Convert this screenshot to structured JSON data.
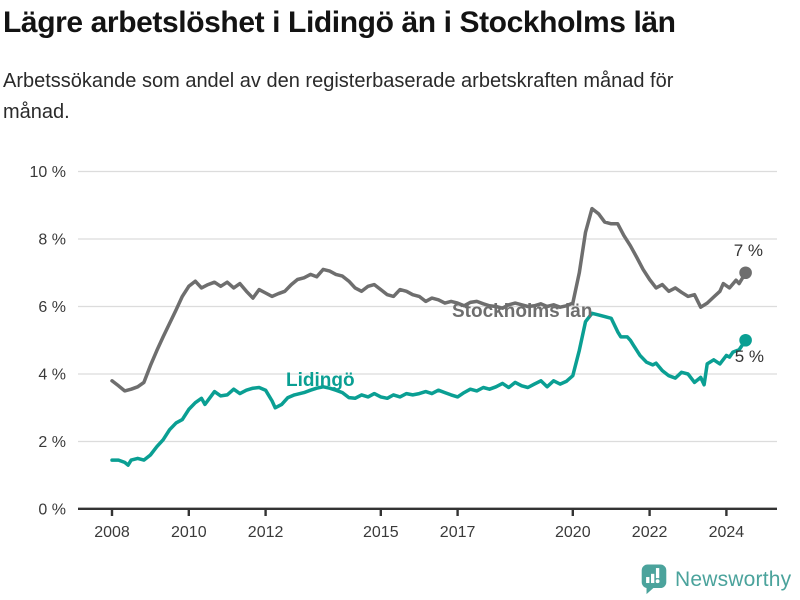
{
  "header": {
    "title": "Lägre arbetslöshet i Lidingö än i Stockholms län",
    "subtitle": "Arbetssökande som andel av den registerbaserade arbetskraften månad för månad."
  },
  "chart_data": {
    "type": "line",
    "title": "Lägre arbetslöshet i Lidingö än i Stockholms län",
    "xlabel": "",
    "ylabel": "",
    "ylim": [
      0,
      10
    ],
    "xlim": [
      2007.1,
      2025.3
    ],
    "grid": "horizontal",
    "legend": "inline-labels",
    "colors": {
      "grid": "#dcdcdc",
      "axis": "#333333",
      "tick_label": "#3a3a3a",
      "end_label": "#333333"
    },
    "y_ticks": [
      {
        "value": 10,
        "label": "10 %"
      },
      {
        "value": 8,
        "label": "8 %"
      },
      {
        "value": 6,
        "label": "6 %"
      },
      {
        "value": 4,
        "label": "4 %"
      },
      {
        "value": 2,
        "label": "2 %"
      },
      {
        "value": 0,
        "label": "0 %"
      }
    ],
    "x_ticks": [
      {
        "value": 2008,
        "label": "2008"
      },
      {
        "value": 2010,
        "label": "2010"
      },
      {
        "value": 2012,
        "label": "2012"
      },
      {
        "value": 2015,
        "label": "2015"
      },
      {
        "value": 2017,
        "label": "2017"
      },
      {
        "value": 2020,
        "label": "2020"
      },
      {
        "value": 2022,
        "label": "2022"
      },
      {
        "value": 2024,
        "label": "2024"
      }
    ],
    "series": [
      {
        "name": "Stockholms län",
        "color": "#6e6e6e",
        "end_label": "7 %",
        "points": [
          [
            2008.0,
            3.8
          ],
          [
            2008.17,
            3.65
          ],
          [
            2008.33,
            3.5
          ],
          [
            2008.5,
            3.55
          ],
          [
            2008.67,
            3.62
          ],
          [
            2008.83,
            3.75
          ],
          [
            2009.0,
            4.25
          ],
          [
            2009.17,
            4.7
          ],
          [
            2009.33,
            5.1
          ],
          [
            2009.5,
            5.5
          ],
          [
            2009.67,
            5.9
          ],
          [
            2009.83,
            6.3
          ],
          [
            2010.0,
            6.6
          ],
          [
            2010.17,
            6.75
          ],
          [
            2010.33,
            6.55
          ],
          [
            2010.5,
            6.65
          ],
          [
            2010.67,
            6.72
          ],
          [
            2010.83,
            6.6
          ],
          [
            2011.0,
            6.72
          ],
          [
            2011.17,
            6.55
          ],
          [
            2011.33,
            6.68
          ],
          [
            2011.5,
            6.45
          ],
          [
            2011.67,
            6.25
          ],
          [
            2011.83,
            6.5
          ],
          [
            2012.0,
            6.4
          ],
          [
            2012.17,
            6.3
          ],
          [
            2012.33,
            6.38
          ],
          [
            2012.5,
            6.45
          ],
          [
            2012.67,
            6.65
          ],
          [
            2012.83,
            6.8
          ],
          [
            2013.0,
            6.85
          ],
          [
            2013.17,
            6.95
          ],
          [
            2013.33,
            6.88
          ],
          [
            2013.5,
            7.1
          ],
          [
            2013.67,
            7.05
          ],
          [
            2013.83,
            6.95
          ],
          [
            2014.0,
            6.9
          ],
          [
            2014.17,
            6.75
          ],
          [
            2014.33,
            6.55
          ],
          [
            2014.5,
            6.45
          ],
          [
            2014.67,
            6.6
          ],
          [
            2014.83,
            6.65
          ],
          [
            2015.0,
            6.5
          ],
          [
            2015.17,
            6.35
          ],
          [
            2015.33,
            6.3
          ],
          [
            2015.5,
            6.5
          ],
          [
            2015.67,
            6.45
          ],
          [
            2015.83,
            6.35
          ],
          [
            2016.0,
            6.3
          ],
          [
            2016.17,
            6.15
          ],
          [
            2016.33,
            6.25
          ],
          [
            2016.5,
            6.2
          ],
          [
            2016.67,
            6.1
          ],
          [
            2016.83,
            6.15
          ],
          [
            2017.0,
            6.1
          ],
          [
            2017.17,
            6.02
          ],
          [
            2017.33,
            6.12
          ],
          [
            2017.5,
            6.15
          ],
          [
            2017.67,
            6.08
          ],
          [
            2017.83,
            6.02
          ],
          [
            2018.0,
            6.0
          ],
          [
            2018.17,
            5.95
          ],
          [
            2018.33,
            6.05
          ],
          [
            2018.5,
            6.1
          ],
          [
            2018.67,
            6.05
          ],
          [
            2018.83,
            6.0
          ],
          [
            2019.0,
            6.02
          ],
          [
            2019.17,
            6.08
          ],
          [
            2019.33,
            6.0
          ],
          [
            2019.5,
            6.05
          ],
          [
            2019.67,
            5.98
          ],
          [
            2019.83,
            6.02
          ],
          [
            2020.0,
            6.1
          ],
          [
            2020.17,
            7.0
          ],
          [
            2020.33,
            8.2
          ],
          [
            2020.5,
            8.9
          ],
          [
            2020.67,
            8.75
          ],
          [
            2020.83,
            8.5
          ],
          [
            2021.0,
            8.45
          ],
          [
            2021.17,
            8.45
          ],
          [
            2021.33,
            8.1
          ],
          [
            2021.5,
            7.8
          ],
          [
            2021.67,
            7.45
          ],
          [
            2021.83,
            7.1
          ],
          [
            2022.0,
            6.8
          ],
          [
            2022.17,
            6.55
          ],
          [
            2022.33,
            6.65
          ],
          [
            2022.5,
            6.45
          ],
          [
            2022.67,
            6.55
          ],
          [
            2022.83,
            6.42
          ],
          [
            2023.0,
            6.3
          ],
          [
            2023.17,
            6.35
          ],
          [
            2023.33,
            5.98
          ],
          [
            2023.5,
            6.1
          ],
          [
            2023.67,
            6.28
          ],
          [
            2023.83,
            6.45
          ],
          [
            2023.92,
            6.68
          ],
          [
            2024.08,
            6.55
          ],
          [
            2024.25,
            6.78
          ],
          [
            2024.33,
            6.68
          ],
          [
            2024.5,
            7.0
          ]
        ]
      },
      {
        "name": "Lidingö",
        "color": "#0a9f93",
        "end_label": "5 %",
        "points": [
          [
            2008.0,
            1.45
          ],
          [
            2008.17,
            1.45
          ],
          [
            2008.33,
            1.38
          ],
          [
            2008.42,
            1.3
          ],
          [
            2008.5,
            1.45
          ],
          [
            2008.67,
            1.5
          ],
          [
            2008.83,
            1.45
          ],
          [
            2009.0,
            1.6
          ],
          [
            2009.17,
            1.85
          ],
          [
            2009.33,
            2.05
          ],
          [
            2009.5,
            2.35
          ],
          [
            2009.67,
            2.55
          ],
          [
            2009.83,
            2.65
          ],
          [
            2010.0,
            2.95
          ],
          [
            2010.17,
            3.15
          ],
          [
            2010.33,
            3.28
          ],
          [
            2010.42,
            3.1
          ],
          [
            2010.5,
            3.22
          ],
          [
            2010.67,
            3.48
          ],
          [
            2010.83,
            3.35
          ],
          [
            2011.0,
            3.38
          ],
          [
            2011.17,
            3.55
          ],
          [
            2011.33,
            3.42
          ],
          [
            2011.5,
            3.52
          ],
          [
            2011.67,
            3.58
          ],
          [
            2011.83,
            3.6
          ],
          [
            2012.0,
            3.52
          ],
          [
            2012.17,
            3.2
          ],
          [
            2012.25,
            3.0
          ],
          [
            2012.42,
            3.1
          ],
          [
            2012.58,
            3.3
          ],
          [
            2012.75,
            3.38
          ],
          [
            2013.0,
            3.45
          ],
          [
            2013.17,
            3.52
          ],
          [
            2013.33,
            3.58
          ],
          [
            2013.5,
            3.62
          ],
          [
            2013.67,
            3.58
          ],
          [
            2013.83,
            3.52
          ],
          [
            2014.0,
            3.45
          ],
          [
            2014.17,
            3.3
          ],
          [
            2014.33,
            3.28
          ],
          [
            2014.5,
            3.38
          ],
          [
            2014.67,
            3.32
          ],
          [
            2014.83,
            3.42
          ],
          [
            2015.0,
            3.32
          ],
          [
            2015.17,
            3.28
          ],
          [
            2015.33,
            3.38
          ],
          [
            2015.5,
            3.32
          ],
          [
            2015.67,
            3.42
          ],
          [
            2015.83,
            3.38
          ],
          [
            2016.0,
            3.42
          ],
          [
            2016.17,
            3.48
          ],
          [
            2016.33,
            3.42
          ],
          [
            2016.5,
            3.52
          ],
          [
            2016.67,
            3.45
          ],
          [
            2016.83,
            3.38
          ],
          [
            2017.0,
            3.32
          ],
          [
            2017.17,
            3.45
          ],
          [
            2017.33,
            3.55
          ],
          [
            2017.5,
            3.5
          ],
          [
            2017.67,
            3.6
          ],
          [
            2017.83,
            3.55
          ],
          [
            2018.0,
            3.62
          ],
          [
            2018.17,
            3.72
          ],
          [
            2018.33,
            3.6
          ],
          [
            2018.5,
            3.75
          ],
          [
            2018.67,
            3.65
          ],
          [
            2018.83,
            3.6
          ],
          [
            2019.0,
            3.7
          ],
          [
            2019.17,
            3.8
          ],
          [
            2019.33,
            3.62
          ],
          [
            2019.5,
            3.8
          ],
          [
            2019.67,
            3.7
          ],
          [
            2019.83,
            3.78
          ],
          [
            2020.0,
            3.95
          ],
          [
            2020.17,
            4.7
          ],
          [
            2020.33,
            5.55
          ],
          [
            2020.5,
            5.8
          ],
          [
            2020.67,
            5.75
          ],
          [
            2020.83,
            5.7
          ],
          [
            2021.0,
            5.65
          ],
          [
            2021.17,
            5.25
          ],
          [
            2021.25,
            5.1
          ],
          [
            2021.42,
            5.1
          ],
          [
            2021.5,
            5.0
          ],
          [
            2021.58,
            4.85
          ],
          [
            2021.75,
            4.55
          ],
          [
            2021.92,
            4.35
          ],
          [
            2022.08,
            4.27
          ],
          [
            2022.17,
            4.32
          ],
          [
            2022.33,
            4.1
          ],
          [
            2022.5,
            3.95
          ],
          [
            2022.67,
            3.88
          ],
          [
            2022.83,
            4.05
          ],
          [
            2023.0,
            4.0
          ],
          [
            2023.17,
            3.75
          ],
          [
            2023.33,
            3.9
          ],
          [
            2023.42,
            3.68
          ],
          [
            2023.5,
            4.3
          ],
          [
            2023.67,
            4.42
          ],
          [
            2023.83,
            4.3
          ],
          [
            2024.0,
            4.55
          ],
          [
            2024.08,
            4.5
          ],
          [
            2024.17,
            4.65
          ],
          [
            2024.33,
            4.72
          ],
          [
            2024.5,
            5.0
          ]
        ]
      }
    ]
  },
  "footer": {
    "brand": "Newsworthy",
    "brand_color": "#4ba39c",
    "logo_icon": "newsworthy-speech-bubble-bar-chart-icon"
  }
}
